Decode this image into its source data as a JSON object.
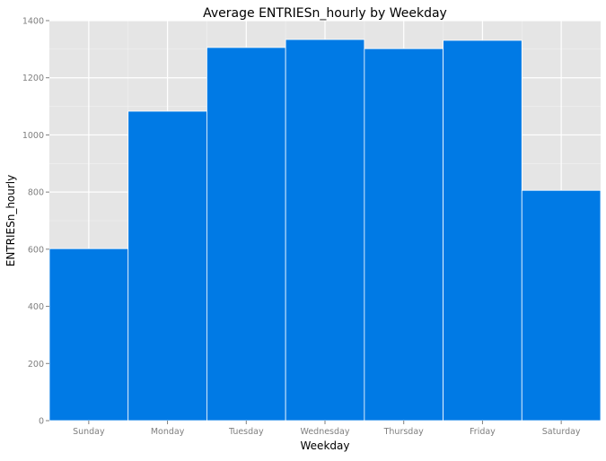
{
  "chart_data": {
    "type": "bar",
    "title": "Average ENTRIESn_hourly by Weekday",
    "xlabel": "Weekday",
    "ylabel": "ENTRIESn_hourly",
    "categories": [
      "Sunday",
      "Monday",
      "Tuesday",
      "Wednesday",
      "Thursday",
      "Friday",
      "Saturday"
    ],
    "values": [
      602,
      1083,
      1306,
      1334,
      1302,
      1331,
      806
    ],
    "ylim": [
      0,
      1400
    ],
    "yticks": [
      0,
      200,
      400,
      600,
      800,
      1000,
      1200,
      1400
    ],
    "grid": true,
    "legend": "none",
    "colors": {
      "bar": "#007ae5",
      "panel": "#e5e5e5",
      "grid_major": "#ffffff",
      "grid_minor": "#f2f2f2",
      "tick_text": "#7f7f7f"
    }
  }
}
